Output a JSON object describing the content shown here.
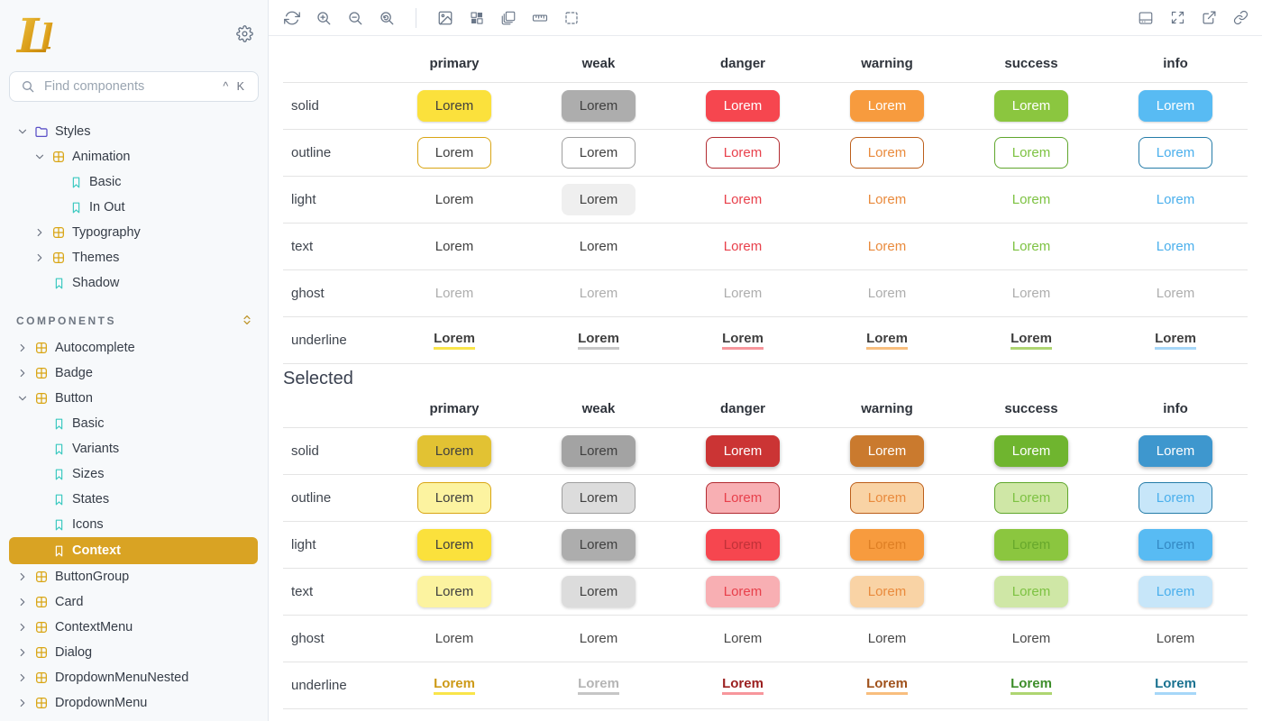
{
  "app": {
    "accent": "#D9A323"
  },
  "sidebar": {
    "logo_text": "Ll",
    "search": {
      "placeholder": "Find components",
      "shortcut": "^ K"
    },
    "tree": [
      {
        "label": "Styles",
        "icon": "folder",
        "state": "expanded",
        "children": [
          {
            "label": "Animation",
            "icon": "grid",
            "state": "expanded",
            "children": [
              {
                "label": "Basic",
                "icon": "bookmark"
              },
              {
                "label": "In Out",
                "icon": "bookmark"
              }
            ]
          },
          {
            "label": "Typography",
            "icon": "grid",
            "state": "collapsed"
          },
          {
            "label": "Themes",
            "icon": "grid",
            "state": "collapsed"
          },
          {
            "label": "Shadow",
            "icon": "bookmark"
          }
        ]
      },
      {
        "header": "COMPONENTS"
      },
      {
        "label": "Autocomplete",
        "icon": "grid",
        "state": "collapsed"
      },
      {
        "label": "Badge",
        "icon": "grid",
        "state": "collapsed"
      },
      {
        "label": "Button",
        "icon": "grid",
        "state": "expanded",
        "children": [
          {
            "label": "Basic",
            "icon": "bookmark"
          },
          {
            "label": "Variants",
            "icon": "bookmark"
          },
          {
            "label": "Sizes",
            "icon": "bookmark"
          },
          {
            "label": "States",
            "icon": "bookmark"
          },
          {
            "label": "Icons",
            "icon": "bookmark"
          },
          {
            "label": "Context",
            "icon": "bookmark",
            "selected": true
          }
        ]
      },
      {
        "label": "ButtonGroup",
        "icon": "grid",
        "state": "collapsed"
      },
      {
        "label": "Card",
        "icon": "grid",
        "state": "collapsed"
      },
      {
        "label": "ContextMenu",
        "icon": "grid",
        "state": "collapsed"
      },
      {
        "label": "Dialog",
        "icon": "grid",
        "state": "collapsed"
      },
      {
        "label": "DropdownMenuNested",
        "icon": "grid",
        "state": "collapsed"
      },
      {
        "label": "DropdownMenu",
        "icon": "grid",
        "state": "collapsed"
      }
    ]
  },
  "toolbar": {
    "left": [
      "refresh",
      "zoom-in",
      "zoom-out",
      "zoom-reset",
      "divider",
      "background",
      "checkerboard",
      "sizes",
      "measure",
      "outline"
    ],
    "right": [
      "addon-panel",
      "fullscreen",
      "open-new-tab",
      "copy-link"
    ]
  },
  "preview": {
    "button_label": "Lorem",
    "columns": [
      "primary",
      "weak",
      "danger",
      "warning",
      "success",
      "info"
    ],
    "rows": [
      "solid",
      "outline",
      "light",
      "text",
      "ghost",
      "underline"
    ],
    "sections": [
      {
        "title": "",
        "selected": false
      },
      {
        "title": "Selected",
        "selected": true
      }
    ],
    "dark_text": "#3F3F3F",
    "ghost_color": "#ADADAD",
    "ghost_selected_color": "#474747",
    "underline_base_text": "#3F3F3F",
    "light_weak_bg": "#EFEFEF",
    "palette": {
      "primary": {
        "base": "#FBE13C",
        "dark": "#E2C233",
        "border": "#D9A514",
        "pale": "#FCF3A0",
        "text": "#3F3F3F",
        "lightSelText": "#3F3F3F",
        "underline": "#F9E54A",
        "underlineSelText": "#CD9A18"
      },
      "weak": {
        "base": "#ADADAD",
        "dark": "#A3A3A3",
        "border": "#9E9E9E",
        "pale": "#DCDCDC",
        "text": "#3F3F3F",
        "lightSelText": "#3F3F3F",
        "underline": "#C6C6C6",
        "underlineSelText": "#B5B5B5"
      },
      "danger": {
        "base": "#F6464F",
        "dark": "#CB3434",
        "border": "#B22B31",
        "pale": "#F8AFB3",
        "text": "#E8404B",
        "lightSelText": "#C03238",
        "underline": "#F7969C",
        "underlineSelText": "#9B2020"
      },
      "warning": {
        "base": "#F79B3E",
        "dark": "#CA7A2E",
        "border": "#BC5E1A",
        "pale": "#F9D3A5",
        "text": "#E98A3C",
        "lightSelText": "#DE7F24",
        "underline": "#F8BE7E",
        "underlineSelText": "#A0521C"
      },
      "success": {
        "base": "#8BC63F",
        "dark": "#6FB52F",
        "border": "#5FA62C",
        "pale": "#CFE7A6",
        "text": "#7DC242",
        "lightSelText": "#67A82C",
        "underline": "#AED571",
        "underlineSelText": "#3E8E2B"
      },
      "info": {
        "base": "#58BBF3",
        "dark": "#3E97CE",
        "border": "#257CA8",
        "pale": "#C7E6F9",
        "text": "#4AAFEC",
        "lightSelText": "#3489C4",
        "underline": "#A6D7F8",
        "underlineSelText": "#1A7290"
      }
    }
  }
}
